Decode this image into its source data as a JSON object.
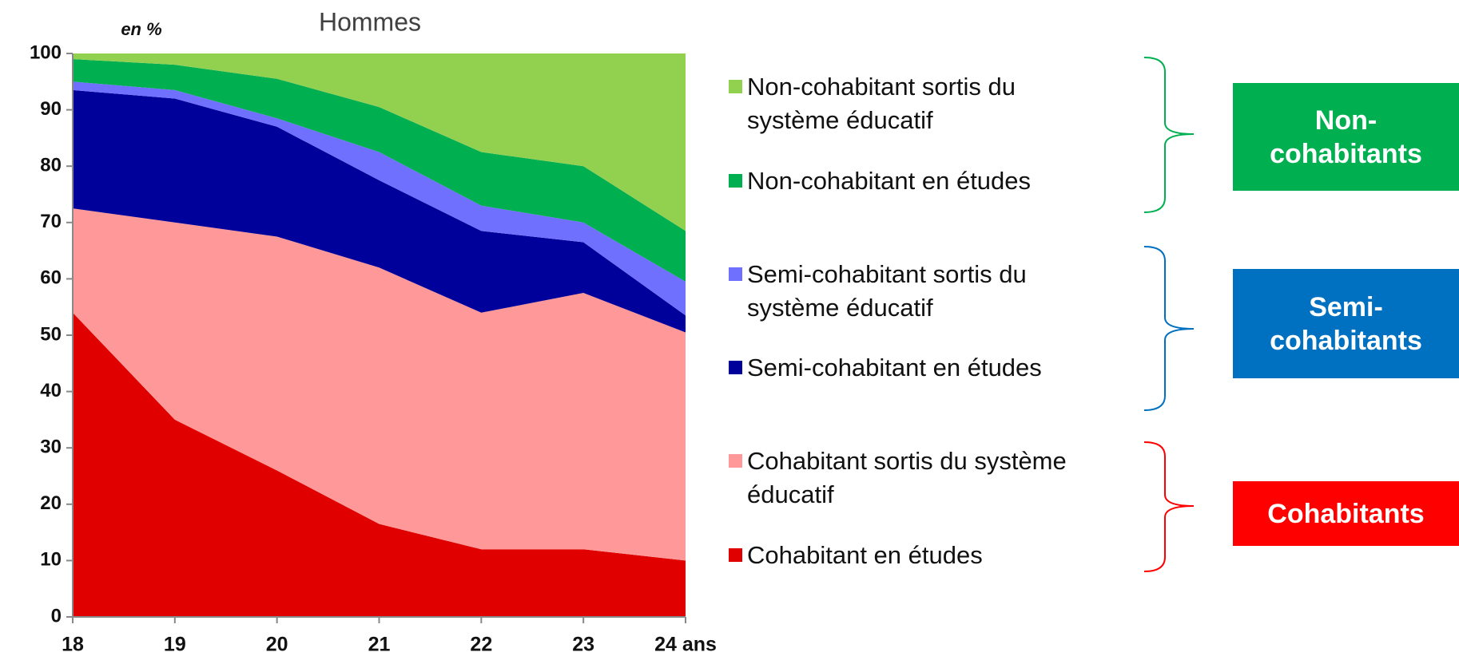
{
  "chart_data": {
    "type": "stacked_area",
    "title": "Hommes",
    "y_label": "en %",
    "categories": [
      "18",
      "19",
      "20",
      "21",
      "22",
      "23",
      "24 ans"
    ],
    "series": [
      {
        "name": "Cohabitant en études",
        "color": "#e00000",
        "values": [
          54,
          35,
          26,
          16.5,
          12,
          12,
          10
        ]
      },
      {
        "name": "Cohabitant sortis du système éducatif",
        "color": "#ff9999",
        "values": [
          18.5,
          35,
          41.5,
          45.5,
          42,
          45.5,
          40.5
        ]
      },
      {
        "name": "Semi-cohabitant en études",
        "color": "#00009a",
        "values": [
          21,
          22,
          19.5,
          15.5,
          14.5,
          9,
          3
        ]
      },
      {
        "name": "Semi-cohabitant sortis du système éducatif",
        "color": "#7070ff",
        "values": [
          1.5,
          1.5,
          1.5,
          5,
          4.5,
          3.5,
          6
        ]
      },
      {
        "name": "Non-cohabitant en études",
        "color": "#00b050",
        "values": [
          4,
          4.5,
          7,
          8,
          9.5,
          10,
          9
        ]
      },
      {
        "name": "Non-cohabitant sortis du système éducatif",
        "color": "#92d050",
        "values": [
          1,
          2,
          4.5,
          9.5,
          17.5,
          20,
          31.5
        ]
      }
    ],
    "ylim": [
      0,
      100
    ],
    "yticks": [
      0,
      10,
      20,
      30,
      40,
      50,
      60,
      70,
      80,
      90,
      100
    ],
    "groups": [
      {
        "lines": [
          "Non-",
          "cohabitants"
        ],
        "color": "#00b050"
      },
      {
        "lines": [
          "Semi-",
          "cohabitants"
        ],
        "color": "#0070c0"
      },
      {
        "lines": [
          "Cohabitants"
        ],
        "color": "#ff0000"
      }
    ]
  }
}
